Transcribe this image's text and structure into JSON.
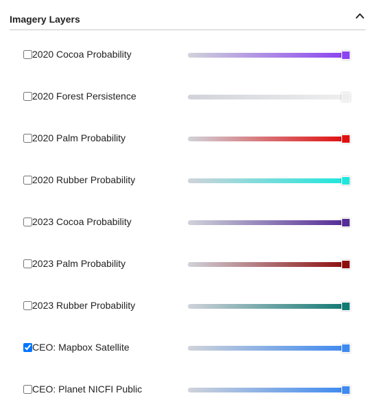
{
  "panel": {
    "title": "Imagery Layers",
    "collapse_icon": "chevron-up-icon"
  },
  "layers": [
    {
      "label": "2020 Cocoa Probability",
      "checked": false,
      "color": "#8b45f0",
      "opacity": 1.0
    },
    {
      "label": "2020 Forest Persistence",
      "checked": false,
      "color": "#eeeeee",
      "opacity": 1.0
    },
    {
      "label": "2020 Palm Probability",
      "checked": false,
      "color": "#e01010",
      "opacity": 1.0
    },
    {
      "label": "2020 Rubber Probability",
      "checked": false,
      "color": "#1fe6dc",
      "opacity": 1.0
    },
    {
      "label": "2023 Cocoa Probability",
      "checked": false,
      "color": "#542c96",
      "opacity": 1.0
    },
    {
      "label": "2023 Palm Probability",
      "checked": false,
      "color": "#8e0f0f",
      "opacity": 1.0
    },
    {
      "label": "2023 Rubber Probability",
      "checked": false,
      "color": "#147a74",
      "opacity": 1.0
    },
    {
      "label": "CEO: Mapbox Satellite",
      "checked": true,
      "color": "#3f8af0",
      "opacity": 1.0
    },
    {
      "label": "CEO: Planet NICFI Public",
      "checked": false,
      "color": "#3f8af0",
      "opacity": 1.0
    }
  ]
}
